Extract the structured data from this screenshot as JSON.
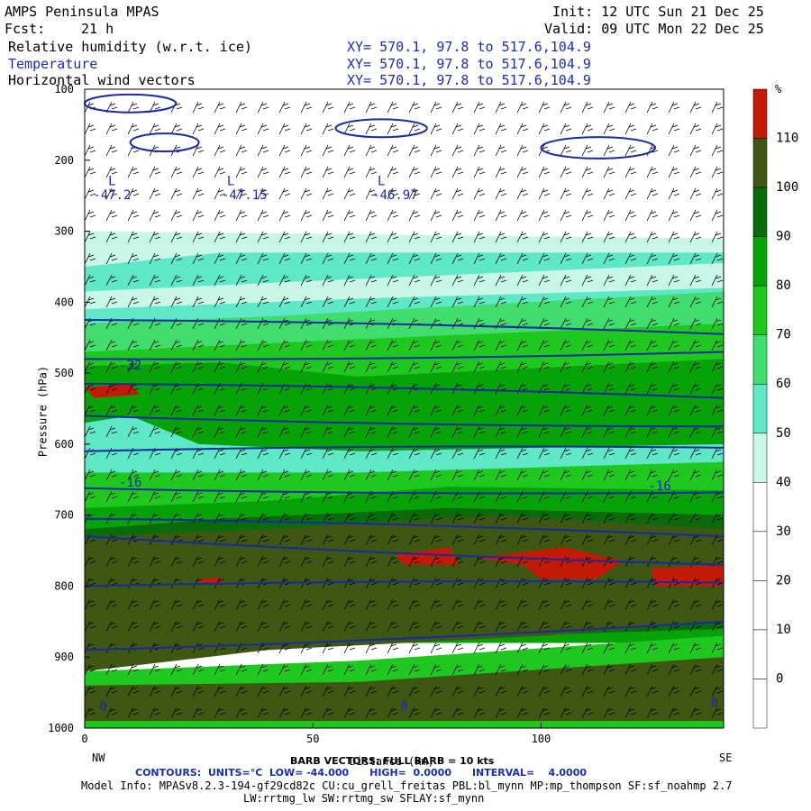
{
  "header": {
    "model": "AMPS Peninsula MPAS",
    "fcst_label": "Fcst:",
    "fcst_value": "21 h",
    "init": "Init: 12 UTC Sun 21 Dec 25",
    "valid": "Valid: 09 UTC Mon 22 Dec 25",
    "fields": [
      {
        "name": "Relative humidity (w.r.t. ice)",
        "xy": "XY= 570.1, 97.8 to 517.6,104.9"
      },
      {
        "name": "Temperature",
        "xy": "XY= 570.1, 97.8 to 517.6,104.9"
      },
      {
        "name": "Horizontal wind vectors",
        "xy": "XY= 570.1, 97.8 to 517.6,104.9"
      }
    ]
  },
  "footer": {
    "barb_note": "BARB VECTORS: FULL BARB = 10 kts",
    "contours": "CONTOURS:  UNITS=°C  LOW= -44.000      HIGH=  0.0000      INTERVAL=    4.0000",
    "model_info": "Model Info: MPASv8.2.3-194-gf29cd82c CU:cu_grell_freitas PBL:bl_mynn MP:mp_thompson SF:sf_noahmp 2.7",
    "model_info2": "LW:rrtmg_lw SW:rrtmg_sw SFLAY:sf_mynn"
  },
  "colors": {
    "rh_bands": [
      "#ffffff",
      "#ffffff",
      "#ffffff",
      "#ffffff",
      "#c8f7e8",
      "#5fe8c7",
      "#41de6f",
      "#1ec81e",
      "#07a207",
      "#0b6b0b",
      "#3e5814",
      "#c41a08"
    ],
    "contour": "#1a2aa0"
  },
  "chart_data": {
    "type": "heatmap",
    "xlabel": "Distance (km)",
    "ylabel": "Pressure (hPa)",
    "x_ticks": [
      "0",
      "50",
      "100"
    ],
    "y_ticks": [
      "100",
      "200",
      "300",
      "400",
      "500",
      "600",
      "700",
      "800",
      "900",
      "1000"
    ],
    "xlim": [
      0,
      140
    ],
    "ylim": [
      1000,
      100
    ],
    "left_label": "NW",
    "right_label": "SE",
    "colorbar": {
      "unit": "%",
      "levels": [
        "110",
        "100",
        "90",
        "80",
        "70",
        "60",
        "50",
        "40",
        "30",
        "20",
        "10",
        "0"
      ]
    },
    "temperature_contours": [
      {
        "label": "-47.2",
        "x": 6,
        "p": 255
      },
      {
        "label": "-47.15",
        "x": 35,
        "p": 255
      },
      {
        "label": "-46.97",
        "x": 68,
        "p": 255
      },
      {
        "label": "-32",
        "x": 10,
        "p": 495
      },
      {
        "label": "-16",
        "x": 10,
        "p": 660
      },
      {
        "label": "-16",
        "x": 126,
        "p": 665
      },
      {
        "label": "0",
        "x": 4,
        "p": 975
      },
      {
        "label": "0",
        "x": 70,
        "p": 975
      },
      {
        "label": "0",
        "x": 138,
        "p": 970
      }
    ],
    "low_markers": [
      {
        "label": "L",
        "x": 6,
        "p": 235
      },
      {
        "label": "L",
        "x": 32,
        "p": 235
      },
      {
        "label": "L",
        "x": 65,
        "p": 235
      }
    ]
  }
}
